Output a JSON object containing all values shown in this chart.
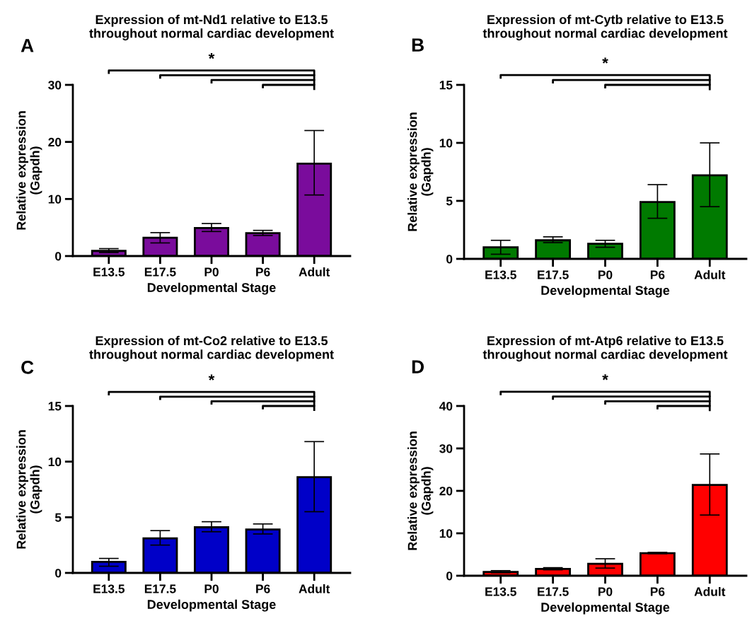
{
  "chart_data": [
    {
      "type": "bar",
      "title": "Expression of mt-Nd1 relative to E13.5\nthroughout normal cardiac development",
      "xlabel": "Developmental Stage",
      "ylabel": "Relative expression\n(Gapdh)",
      "annotations": [
        "A",
        "*"
      ],
      "categories": [
        "E13.5",
        "E17.5",
        "P0",
        "P6",
        "Adult"
      ],
      "values": [
        0.9,
        3.2,
        4.9,
        4.0,
        16.2
      ],
      "color": "#7a0c9c",
      "errors": [
        [
          0.6,
          1.3
        ],
        [
          2.3,
          4.1
        ],
        [
          4.3,
          5.7
        ],
        [
          3.6,
          4.5
        ],
        [
          10.7,
          22.0
        ]
      ],
      "ylim": [
        0,
        30
      ],
      "yticks": [
        0,
        10,
        20,
        30
      ],
      "grid": false,
      "legend": false
    },
    {
      "type": "bar",
      "title": "Expression of mt-Cytb relative to E13.5\nthroughout normal cardiac development",
      "xlabel": "Developmental Stage",
      "ylabel": "Relative expression\n(Gapdh)",
      "annotations": [
        "B",
        "*"
      ],
      "categories": [
        "E13.5",
        "E17.5",
        "P0",
        "P6",
        "Adult"
      ],
      "values": [
        1.0,
        1.6,
        1.3,
        4.9,
        7.2
      ],
      "color": "#007a00",
      "errors": [
        [
          0.4,
          1.6
        ],
        [
          1.4,
          1.9
        ],
        [
          1.0,
          1.6
        ],
        [
          3.5,
          6.4
        ],
        [
          4.5,
          10.0
        ]
      ],
      "ylim": [
        0,
        15
      ],
      "yticks": [
        0,
        5,
        10,
        15
      ],
      "grid": false,
      "legend": false
    },
    {
      "type": "bar",
      "title": "Expression of mt-Co2 relative to E13.5\nthroughout normal cardiac development",
      "xlabel": "Developmental Stage",
      "ylabel": "Relative expression\n(Gapdh)",
      "annotations": [
        "C",
        "*"
      ],
      "categories": [
        "E13.5",
        "E17.5",
        "P0",
        "P6",
        "Adult"
      ],
      "values": [
        1.0,
        3.1,
        4.1,
        3.9,
        8.6
      ],
      "color": "#0000c8",
      "errors": [
        [
          0.6,
          1.3
        ],
        [
          2.5,
          3.8
        ],
        [
          3.7,
          4.6
        ],
        [
          3.5,
          4.4
        ],
        [
          5.5,
          11.8
        ]
      ],
      "ylim": [
        0,
        15
      ],
      "yticks": [
        0,
        5,
        10,
        15
      ],
      "grid": false,
      "legend": false
    },
    {
      "type": "bar",
      "title": "Expression of mt-Atp6 relative to E13.5\nthroughout normal cardiac development",
      "xlabel": "Developmental Stage",
      "ylabel": "Relative expression\n(Gapdh)",
      "annotations": [
        "D",
        "*"
      ],
      "categories": [
        "E13.5",
        "E17.5",
        "P0",
        "P6",
        "Adult"
      ],
      "values": [
        0.9,
        1.6,
        2.8,
        5.3,
        21.4
      ],
      "color": "#ff0000",
      "errors": [
        [
          0.7,
          1.2
        ],
        [
          1.4,
          1.9
        ],
        [
          1.8,
          4.0
        ],
        [
          5.2,
          5.5
        ],
        [
          14.3,
          28.7
        ]
      ],
      "ylim": [
        0,
        40
      ],
      "yticks": [
        0,
        10,
        20,
        30,
        40
      ],
      "grid": false,
      "legend": false
    }
  ]
}
